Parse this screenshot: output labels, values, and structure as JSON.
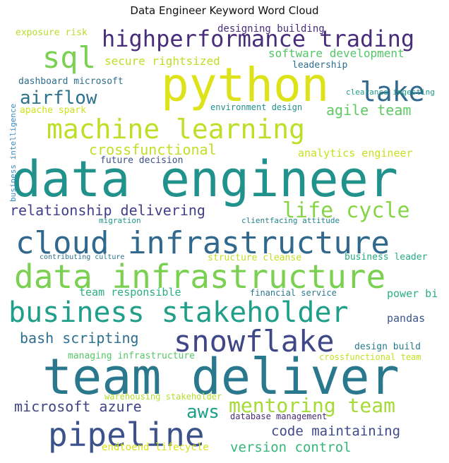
{
  "chart_data": {
    "type": "wordcloud",
    "title": "Data Engineer Keyword Word Cloud",
    "words": [
      {
        "text": "data engineer",
        "color": "#21918c"
      },
      {
        "text": "team deliver",
        "color": "#2a788e"
      },
      {
        "text": "python",
        "color": "#dde318"
      },
      {
        "text": "data infrastructure",
        "color": "#7ad151"
      },
      {
        "text": "cloud infrastructure",
        "color": "#31688e"
      },
      {
        "text": "pipeline",
        "color": "#3b528b"
      },
      {
        "text": "business stakeholder",
        "color": "#1f9e89"
      },
      {
        "text": "machine learning",
        "color": "#bddf26"
      },
      {
        "text": "highperformance trading",
        "color": "#472d7b"
      },
      {
        "text": "snowflake",
        "color": "#404788"
      },
      {
        "text": "sql",
        "color": "#7ad151"
      },
      {
        "text": "lake",
        "color": "#31688e"
      },
      {
        "text": "life cycle",
        "color": "#86d549"
      },
      {
        "text": "mentoring team",
        "color": "#a5db36"
      },
      {
        "text": "airflow",
        "color": "#2c728e"
      },
      {
        "text": "agile team",
        "color": "#5ec962"
      },
      {
        "text": "crossfunctional",
        "color": "#c2df23"
      },
      {
        "text": "relationship delivering",
        "color": "#433e85"
      },
      {
        "text": "microsoft azure",
        "color": "#414487"
      },
      {
        "text": "aws",
        "color": "#1fa088"
      },
      {
        "text": "bash scripting",
        "color": "#2d708e"
      },
      {
        "text": "code maintaining",
        "color": "#3e4a89"
      },
      {
        "text": "version control",
        "color": "#35b779"
      },
      {
        "text": "secure rightsized",
        "color": "#bddf26"
      },
      {
        "text": "software development",
        "color": "#54c568"
      },
      {
        "text": "designing building",
        "color": "#472f7d"
      },
      {
        "text": "exposure risk",
        "color": "#b8de29"
      },
      {
        "text": "leadership",
        "color": "#2e6f8e"
      },
      {
        "text": "dashboard microsoft",
        "color": "#2e6e8e"
      },
      {
        "text": "apache spark",
        "color": "#d0e11c"
      },
      {
        "text": "environment design",
        "color": "#21918c"
      },
      {
        "text": "analytics engineer",
        "color": "#c8e020"
      },
      {
        "text": "future decision",
        "color": "#3b528b"
      },
      {
        "text": "power bi",
        "color": "#2ab07f"
      },
      {
        "text": "pandas",
        "color": "#39568c"
      },
      {
        "text": "team responsible",
        "color": "#29af7f"
      },
      {
        "text": "business leader",
        "color": "#25ab82"
      },
      {
        "text": "structure cleanse",
        "color": "#c0df25"
      },
      {
        "text": "financial service",
        "color": "#2a788e"
      },
      {
        "text": "managing infrastructure",
        "color": "#56c667"
      },
      {
        "text": "design build",
        "color": "#2a788e"
      },
      {
        "text": "crossfunctional team",
        "color": "#c5e021"
      },
      {
        "text": "warehousing stakeholder",
        "color": "#b5de2b"
      },
      {
        "text": "database management",
        "color": "#472c7a"
      },
      {
        "text": "endtoend lifecycle",
        "color": "#d8e219"
      },
      {
        "text": "migration",
        "color": "#1f968b"
      },
      {
        "text": "clientfacing attitude",
        "color": "#25848e"
      },
      {
        "text": "contributing culture",
        "color": "#2c728e"
      },
      {
        "text": "clearance ingesting",
        "color": "#1f9a8a"
      },
      {
        "text": "business intelligence",
        "color": "#3b8bc2"
      }
    ]
  }
}
